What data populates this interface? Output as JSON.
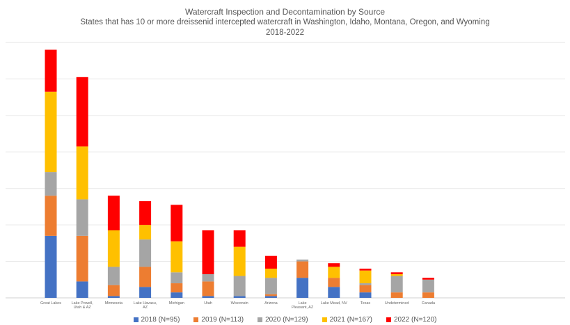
{
  "chart_data": {
    "type": "bar",
    "stacked": true,
    "title": "Watercraft Inspection and Decontamination by Source",
    "subtitle": "States that has 10 or more dreissenid intercepted watercraft in Washington, Idaho, Montana, Oregon, and Wyoming",
    "subtitle2": "2018-2022",
    "xlabel": "",
    "ylabel": "",
    "ylim": [
      0,
      70
    ],
    "grid": true,
    "legend_position": "bottom",
    "categories": [
      "Great Lakes",
      "Lake Powell, Utah & AZ",
      "Minnesota",
      "Lake Havasu, AZ",
      "Michigan",
      "Utah",
      "Wisconsin",
      "Arizona",
      "Lake Pleasant, AZ",
      "Lake Mead, NV",
      "Texas",
      "Undetermined",
      "Canada"
    ],
    "series": [
      {
        "name": "2018 (N=95)",
        "color": "#4472c4",
        "values": [
          17,
          4.5,
          0.5,
          3,
          1.5,
          0.5,
          0.5,
          0.5,
          5.5,
          3,
          1.5,
          0,
          0
        ]
      },
      {
        "name": "2019 (N=113)",
        "color": "#ed7d31",
        "values": [
          11,
          12.5,
          3,
          5.5,
          2.5,
          4,
          0,
          0.5,
          4.5,
          2.5,
          2,
          1.5,
          1.5
        ]
      },
      {
        "name": "2020 (N=129)",
        "color": "#a5a5a5",
        "values": [
          6.5,
          10,
          5,
          7.5,
          3,
          2,
          5.5,
          4.5,
          0.5,
          0,
          0.5,
          4.5,
          3.5
        ]
      },
      {
        "name": "2021 (N=167)",
        "color": "#ffc000",
        "values": [
          22,
          14.5,
          10,
          4,
          8.5,
          0,
          8,
          2.5,
          0,
          3,
          3.5,
          0.5,
          0
        ]
      },
      {
        "name": "2022 (N=120)",
        "color": "#ff0000",
        "values": [
          11.5,
          19,
          9.5,
          6.5,
          10,
          12,
          4.5,
          3.5,
          0,
          1,
          0.5,
          0.5,
          0.5
        ]
      }
    ]
  }
}
